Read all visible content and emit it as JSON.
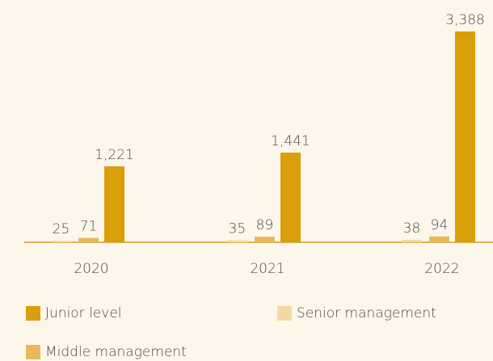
{
  "chart_data": {
    "type": "bar",
    "categories": [
      "2020",
      "2021",
      "2022"
    ],
    "series": [
      {
        "name": "Senior management",
        "color": "#f5d9a4",
        "values": [
          25,
          35,
          38
        ],
        "value_labels": [
          "25",
          "35",
          "38"
        ]
      },
      {
        "name": "Middle management",
        "color": "#e8b95c",
        "values": [
          71,
          89,
          94
        ],
        "value_labels": [
          "71",
          "89",
          "94"
        ]
      },
      {
        "name": "Junior level",
        "color": "#d99e0a",
        "values": [
          1221,
          1441,
          3388
        ],
        "value_labels": [
          "1,221",
          "1,441",
          "3,388"
        ]
      }
    ],
    "ylim": [
      0,
      3400
    ]
  }
}
